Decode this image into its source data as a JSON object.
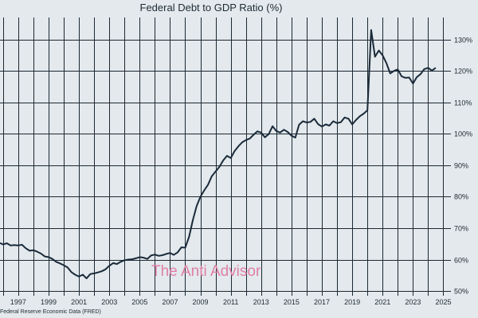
{
  "chart_data": {
    "type": "line",
    "title": "Federal Debt to GDP Ratio (%)",
    "source": "Federal Reserve Economic Data (FRED)",
    "watermark": "The Anti Advisor",
    "xlabel": "",
    "ylabel": "",
    "xlim": [
      1995.8,
      2025.5
    ],
    "ylim": [
      48.5,
      137
    ],
    "x_ticks": [
      1997,
      1999,
      2001,
      2003,
      2005,
      2007,
      2009,
      2011,
      2013,
      2015,
      2017,
      2019,
      2021,
      2023,
      2025
    ],
    "y_ticks": [
      50,
      60,
      70,
      80,
      90,
      100,
      110,
      120,
      130
    ],
    "y_tick_labels": [
      "50%",
      "60%",
      "70%",
      "80%",
      "90%",
      "100%",
      "110%",
      "120%",
      "130%"
    ],
    "grid": true,
    "line_color": "#1a2a3a",
    "grid_color": "#1c2833",
    "background": "#e3e9ec",
    "series": [
      {
        "values": [
          [
            1995.8,
            65.3
          ],
          [
            1996.0,
            64.8
          ],
          [
            1996.25,
            65.2
          ],
          [
            1996.5,
            64.5
          ],
          [
            1996.75,
            64.6
          ],
          [
            1997.0,
            64.5
          ],
          [
            1997.25,
            64.7
          ],
          [
            1997.5,
            63.6
          ],
          [
            1997.75,
            62.8
          ],
          [
            1998.0,
            63.0
          ],
          [
            1998.25,
            62.5
          ],
          [
            1998.5,
            61.9
          ],
          [
            1998.75,
            61.0
          ],
          [
            1999.0,
            60.8
          ],
          [
            1999.25,
            60.2
          ],
          [
            1999.5,
            59.3
          ],
          [
            1999.75,
            58.8
          ],
          [
            2000.0,
            58.2
          ],
          [
            2000.25,
            57.5
          ],
          [
            2000.5,
            56.0
          ],
          [
            2000.75,
            55.2
          ],
          [
            2001.0,
            54.6
          ],
          [
            2001.25,
            55.2
          ],
          [
            2001.5,
            54.0
          ],
          [
            2001.75,
            55.4
          ],
          [
            2002.0,
            55.6
          ],
          [
            2002.25,
            55.9
          ],
          [
            2002.5,
            56.3
          ],
          [
            2002.75,
            56.9
          ],
          [
            2003.0,
            58.0
          ],
          [
            2003.25,
            58.9
          ],
          [
            2003.5,
            58.6
          ],
          [
            2003.75,
            59.3
          ],
          [
            2004.0,
            59.8
          ],
          [
            2004.25,
            60.0
          ],
          [
            2004.5,
            60.1
          ],
          [
            2004.75,
            60.4
          ],
          [
            2005.0,
            60.8
          ],
          [
            2005.25,
            60.6
          ],
          [
            2005.5,
            60.2
          ],
          [
            2005.75,
            61.3
          ],
          [
            2006.0,
            61.6
          ],
          [
            2006.25,
            61.2
          ],
          [
            2006.5,
            61.4
          ],
          [
            2006.75,
            61.8
          ],
          [
            2007.0,
            62.1
          ],
          [
            2007.25,
            61.5
          ],
          [
            2007.5,
            62.3
          ],
          [
            2007.75,
            63.9
          ],
          [
            2008.0,
            63.8
          ],
          [
            2008.25,
            67.2
          ],
          [
            2008.5,
            72.5
          ],
          [
            2008.75,
            77.0
          ],
          [
            2009.0,
            80.0
          ],
          [
            2009.25,
            82.0
          ],
          [
            2009.5,
            83.8
          ],
          [
            2009.75,
            86.5
          ],
          [
            2010.0,
            88.0
          ],
          [
            2010.25,
            89.5
          ],
          [
            2010.5,
            91.5
          ],
          [
            2010.75,
            93.0
          ],
          [
            2011.0,
            92.3
          ],
          [
            2011.25,
            94.5
          ],
          [
            2011.5,
            96.0
          ],
          [
            2011.75,
            97.3
          ],
          [
            2012.0,
            98.0
          ],
          [
            2012.25,
            98.5
          ],
          [
            2012.5,
            99.7
          ],
          [
            2012.75,
            100.8
          ],
          [
            2013.0,
            100.4
          ],
          [
            2013.25,
            98.9
          ],
          [
            2013.5,
            99.9
          ],
          [
            2013.75,
            102.4
          ],
          [
            2014.0,
            100.9
          ],
          [
            2014.25,
            100.4
          ],
          [
            2014.5,
            101.3
          ],
          [
            2014.75,
            100.6
          ],
          [
            2015.0,
            99.4
          ],
          [
            2015.25,
            98.8
          ],
          [
            2015.5,
            102.9
          ],
          [
            2015.75,
            104.0
          ],
          [
            2016.0,
            103.6
          ],
          [
            2016.25,
            103.8
          ],
          [
            2016.5,
            104.8
          ],
          [
            2016.75,
            103.1
          ],
          [
            2017.0,
            102.3
          ],
          [
            2017.25,
            103.0
          ],
          [
            2017.5,
            102.6
          ],
          [
            2017.75,
            104.0
          ],
          [
            2018.0,
            103.4
          ],
          [
            2018.25,
            103.7
          ],
          [
            2018.5,
            105.2
          ],
          [
            2018.75,
            104.8
          ],
          [
            2019.0,
            103.0
          ],
          [
            2019.25,
            104.4
          ],
          [
            2019.5,
            105.6
          ],
          [
            2019.75,
            106.4
          ],
          [
            2020.0,
            107.5
          ],
          [
            2020.25,
            133.0
          ],
          [
            2020.5,
            124.5
          ],
          [
            2020.75,
            126.5
          ],
          [
            2021.0,
            125.0
          ],
          [
            2021.25,
            122.5
          ],
          [
            2021.5,
            119.2
          ],
          [
            2021.75,
            120.0
          ],
          [
            2022.0,
            120.5
          ],
          [
            2022.25,
            118.3
          ],
          [
            2022.5,
            117.8
          ],
          [
            2022.75,
            117.9
          ],
          [
            2023.0,
            116.0
          ],
          [
            2023.25,
            118.0
          ],
          [
            2023.5,
            119.0
          ],
          [
            2023.75,
            120.6
          ],
          [
            2024.0,
            121.0
          ],
          [
            2024.25,
            120.1
          ],
          [
            2024.5,
            121.0
          ]
        ]
      }
    ]
  }
}
